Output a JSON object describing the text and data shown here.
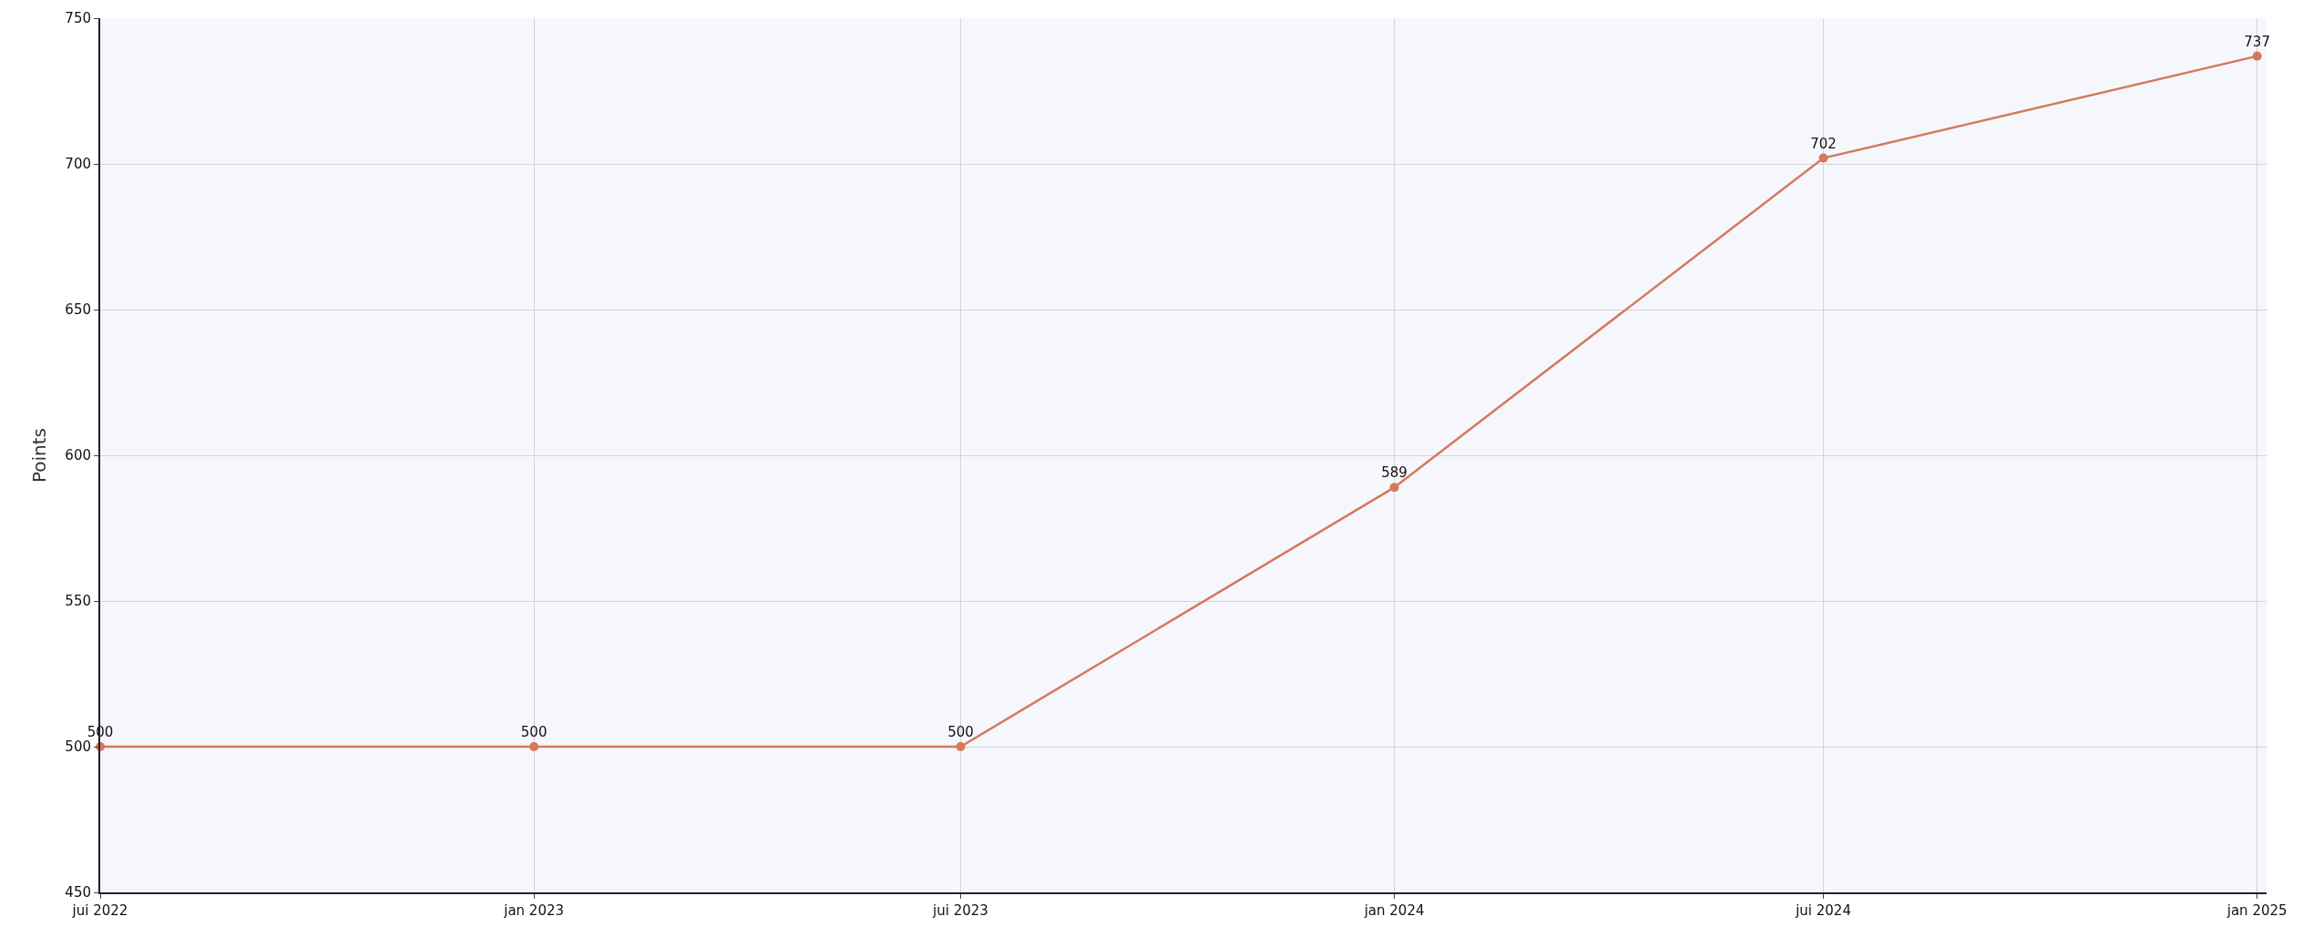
{
  "chart_data": {
    "type": "line",
    "ylabel": "Points",
    "x": [
      "2022-07",
      "2023-01",
      "2023-07",
      "2024-01",
      "2024-07",
      "2025-01"
    ],
    "series": [
      {
        "color": "#d4795a",
        "values": [
          500,
          500,
          500,
          589,
          702,
          737
        ]
      }
    ],
    "xlim": [
      "2022-07-01",
      "2025-01-05"
    ],
    "xticks": [
      {
        "value": "2022-07",
        "label": "jui 2022"
      },
      {
        "value": "2023-01",
        "label": "jan 2023"
      },
      {
        "value": "2023-07",
        "label": "jui 2023"
      },
      {
        "value": "2024-01",
        "label": "jan 2024"
      },
      {
        "value": "2024-07",
        "label": "jui 2024"
      },
      {
        "value": "2025-01",
        "label": "jan 2025"
      }
    ],
    "ylim": [
      450,
      750
    ],
    "yticks": [
      450,
      500,
      550,
      600,
      650,
      700,
      750
    ],
    "grid": true,
    "legend": false,
    "marker": "circle",
    "line_style": "solid",
    "data_labels": true
  }
}
